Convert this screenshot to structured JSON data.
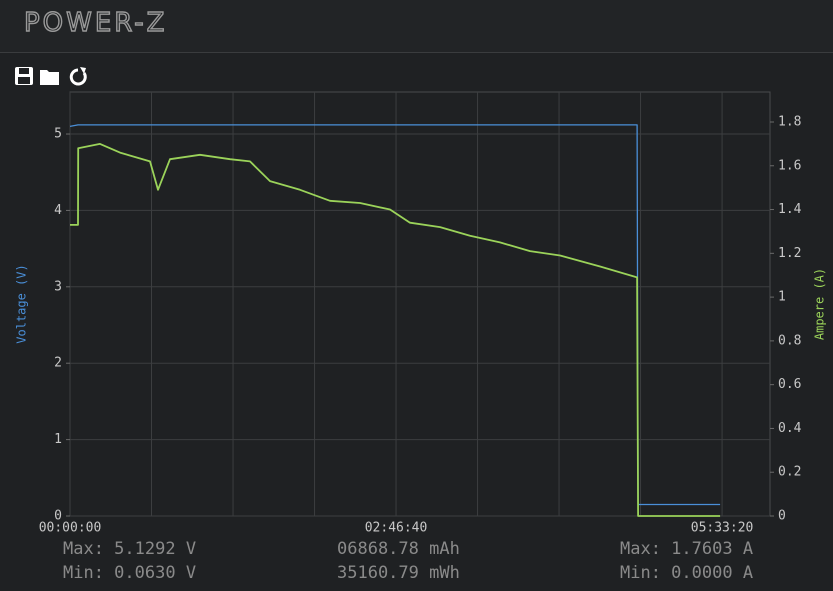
{
  "header": {
    "logo": "POWER-Z"
  },
  "chart_data": {
    "type": "line",
    "y_label": "Voltage (V)",
    "y2_label": "Ampere (A)",
    "x": [
      0,
      245,
      250,
      920,
      1534,
      2454,
      2699,
      3067,
      3988,
      4908,
      5521,
      6135,
      7055,
      7975,
      8896,
      9816,
      10429,
      11350,
      12270,
      13190,
      14110,
      15031,
      16258,
      17393,
      17423,
      19939
    ],
    "xlim": [
      0,
      21470
    ],
    "xticks": [
      {
        "value": 0,
        "label": "00:00:00"
      },
      {
        "value": 10000,
        "label": "02:46:40"
      },
      {
        "value": 20000,
        "label": "05:33:20"
      }
    ],
    "x_gridlines": [
      2500,
      5000,
      7500,
      12500,
      15000,
      17500
    ],
    "ylim": [
      0,
      5.55
    ],
    "yticks": [
      0,
      1,
      2,
      3,
      4,
      5
    ],
    "y2lim": [
      0,
      1.937
    ],
    "y2ticks": [
      0,
      0.2,
      0.4,
      0.6,
      0.8,
      1,
      1.2,
      1.4,
      1.6,
      1.8
    ],
    "grid": true,
    "series": [
      {
        "name": "Voltage",
        "color": "#4a8fd8",
        "values": [
          5.1,
          5.12,
          5.12,
          5.12,
          5.12,
          5.12,
          5.12,
          5.12,
          5.12,
          5.12,
          5.12,
          5.12,
          5.12,
          5.12,
          5.12,
          5.12,
          5.12,
          5.12,
          5.12,
          5.12,
          5.12,
          5.12,
          5.12,
          5.12,
          0.15,
          0.15
        ]
      },
      {
        "name": "Ampere",
        "color": "#9bd35a",
        "axis": "y2",
        "values": [
          1.33,
          1.33,
          1.68,
          1.7,
          1.66,
          1.62,
          1.49,
          1.63,
          1.65,
          1.63,
          1.62,
          1.53,
          1.49,
          1.44,
          1.43,
          1.4,
          1.34,
          1.32,
          1.28,
          1.25,
          1.21,
          1.19,
          1.14,
          1.09,
          0,
          0
        ]
      }
    ]
  },
  "stats": {
    "voltage_max": "Max: 5.1292 V",
    "voltage_min": "Min: 0.0630 V",
    "capacity": "06868.78 mAh",
    "energy": "35160.79 mWh",
    "current_max": "Max: 1.7603 A",
    "current_min": "Min: 0.0000 A"
  }
}
